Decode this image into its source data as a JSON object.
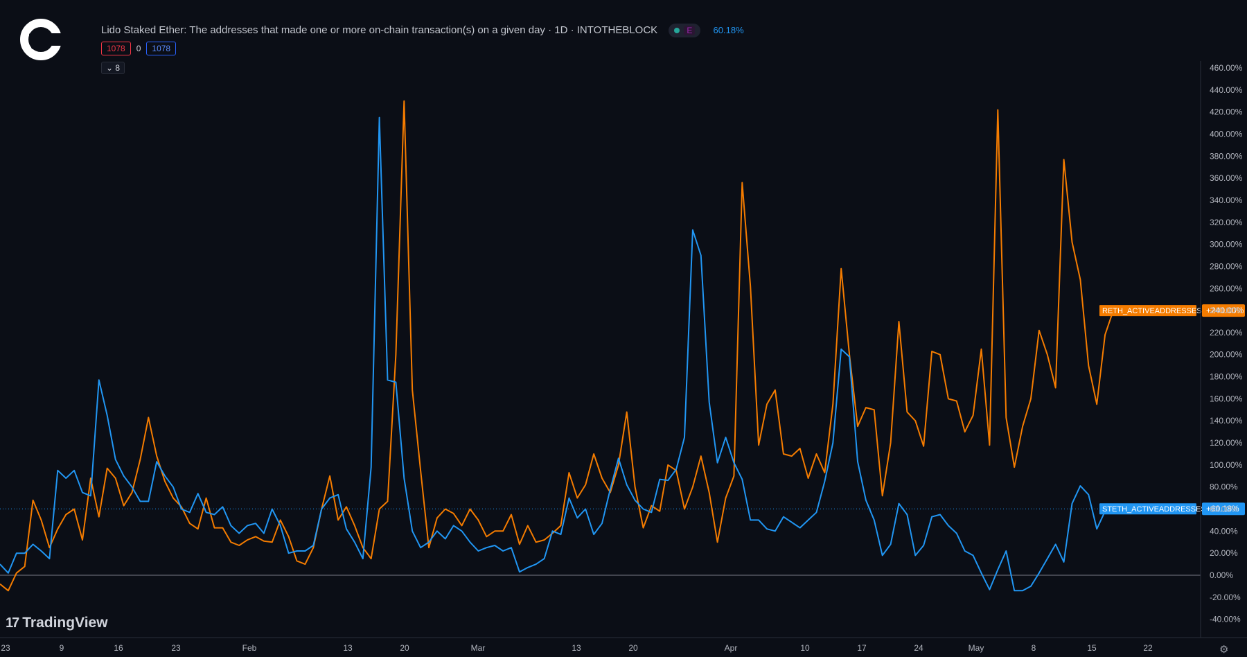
{
  "header": {
    "title": "Lido Staked Ether: The addresses that made one or more on-chain transaction(s) on a given day · 1D · INTOTHEBLOCK",
    "e_label": "E",
    "percent": "60.18%",
    "val_left": "1078",
    "val_mid": "0",
    "val_right": "1078",
    "collapse_label": "⌄ 8"
  },
  "watermark": {
    "label": "TradingView",
    "mark": "17"
  },
  "icons": {
    "logo": "c-logo-icon",
    "settings": "gear-icon"
  },
  "colors": {
    "background": "#0b0e16",
    "reth": "#f57c00",
    "steth": "#2196f3",
    "zero_line": "#787b86"
  },
  "chart_data": {
    "type": "line",
    "ylim": [
      -50,
      465
    ],
    "yticks": [
      "460.00%",
      "440.00%",
      "420.00%",
      "400.00%",
      "380.00%",
      "360.00%",
      "340.00%",
      "320.00%",
      "300.00%",
      "280.00%",
      "260.00%",
      "240.00%",
      "220.00%",
      "200.00%",
      "180.00%",
      "160.00%",
      "140.00%",
      "120.00%",
      "100.00%",
      "80.00%",
      "60.00%",
      "40.00%",
      "20.00%",
      "0.00%",
      "-20.00%",
      "-40.00%"
    ],
    "xlabels": [
      "23",
      "9",
      "16",
      "23",
      "Feb",
      "13",
      "20",
      "Mar",
      "13",
      "20",
      "Apr",
      "10",
      "17",
      "24",
      "May",
      "8",
      "15",
      "22"
    ],
    "series": [
      {
        "name": "RETH_ACTIVEADDRESSES",
        "last_label": "+240.00%",
        "color": "#f57c00",
        "values": [
          -8,
          -14,
          2,
          8,
          68,
          50,
          25,
          42,
          55,
          60,
          32,
          88,
          53,
          97,
          88,
          63,
          75,
          105,
          143,
          108,
          85,
          70,
          62,
          47,
          42,
          70,
          43,
          43,
          30,
          27,
          32,
          35,
          31,
          30,
          50,
          35,
          13,
          10,
          25,
          60,
          90,
          50,
          62,
          45,
          25,
          15,
          60,
          67,
          200,
          430,
          168,
          95,
          25,
          52,
          60,
          56,
          45,
          60,
          50,
          35,
          40,
          40,
          55,
          28,
          45,
          30,
          32,
          38,
          45,
          93,
          70,
          82,
          110,
          88,
          75,
          100,
          148,
          80,
          43,
          63,
          58,
          100,
          95,
          60,
          80,
          108,
          75,
          30,
          70,
          90,
          356,
          262,
          118,
          155,
          168,
          110,
          108,
          115,
          88,
          110,
          93,
          155,
          278,
          200,
          135,
          152,
          150,
          72,
          120,
          230,
          148,
          140,
          117,
          203,
          200,
          160,
          158,
          130,
          145,
          205,
          118,
          422,
          143,
          98,
          135,
          160,
          222,
          200,
          170,
          377,
          302,
          268,
          190,
          155,
          218,
          240
        ],
        "marked_last": 240
      },
      {
        "name": "STETH_ACTIVEADDRESSES",
        "last_label": "+60.18%",
        "color": "#2196f3",
        "values": [
          10,
          2,
          20,
          20,
          28,
          22,
          15,
          95,
          88,
          95,
          75,
          72,
          177,
          145,
          105,
          90,
          80,
          67,
          67,
          103,
          90,
          80,
          60,
          57,
          74,
          57,
          55,
          62,
          45,
          38,
          45,
          47,
          38,
          60,
          45,
          20,
          22,
          22,
          27,
          60,
          70,
          73,
          42,
          30,
          15,
          98,
          415,
          177,
          175,
          88,
          40,
          25,
          30,
          40,
          33,
          45,
          40,
          30,
          22,
          25,
          27,
          22,
          25,
          3,
          7,
          10,
          15,
          40,
          37,
          70,
          52,
          60,
          37,
          47,
          78,
          106,
          82,
          68,
          60,
          57,
          87,
          86,
          96,
          125,
          313,
          290,
          157,
          102,
          125,
          102,
          87,
          50,
          50,
          42,
          40,
          53,
          48,
          43,
          50,
          57,
          85,
          120,
          205,
          198,
          103,
          68,
          50,
          18,
          28,
          65,
          55,
          18,
          27,
          53,
          55,
          45,
          38,
          22,
          18,
          2,
          -13,
          5,
          22,
          -14,
          -14,
          -10,
          2,
          15,
          28,
          12,
          65,
          81,
          73,
          42,
          58,
          60.18
        ]
      }
    ]
  }
}
